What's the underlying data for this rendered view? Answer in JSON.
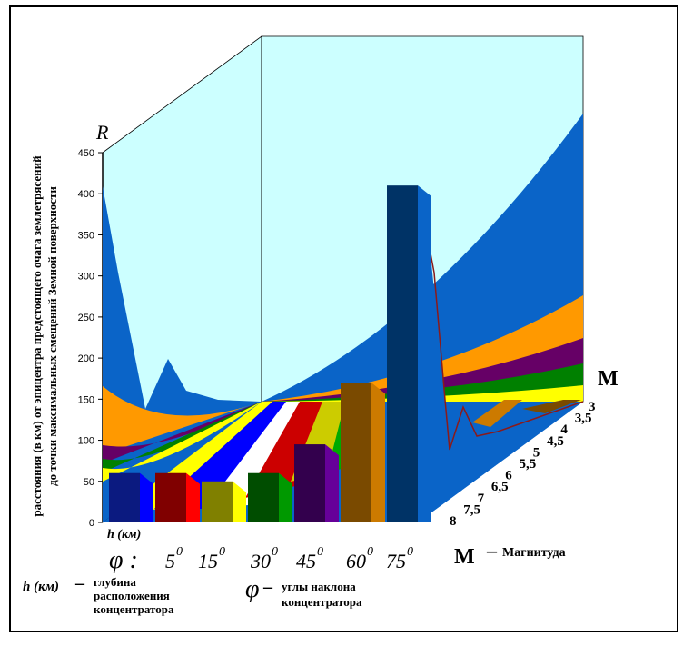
{
  "chart_data": {
    "type": "area",
    "y_axis_letter": "R",
    "ylabel_line1": "расстояния (в км) от эпицентра предстоящего очага землетрясений",
    "ylabel_line2": "до точки максимальных смещений Земной поверхности",
    "ylim": [
      0,
      450
    ],
    "yticks": [
      "0",
      "50",
      "100",
      "150",
      "200",
      "250",
      "300",
      "350",
      "400",
      "450"
    ],
    "h_label": "h (км)",
    "phi_symbol": "φ :",
    "phi_categories": [
      "5",
      "15",
      "30",
      "45",
      "60",
      "75"
    ],
    "degree_mark": "0",
    "h_bars": [
      {
        "phi": "5",
        "value": 60,
        "color": "#0b1a80"
      },
      {
        "phi": "15",
        "value": 60,
        "color": "#800000"
      },
      {
        "phi": "30",
        "value": 50,
        "color": "#808000"
      },
      {
        "phi": "45",
        "value": 60,
        "color": "#004d00"
      },
      {
        "phi": "60",
        "value": 95,
        "color": "#33004d"
      },
      {
        "phi": "75",
        "value": 170,
        "color": "#7a4a00"
      },
      {
        "phi": "",
        "value": 410,
        "color": "#003366"
      }
    ],
    "magnitude_axis_letter": "M",
    "magnitudes": [
      "3",
      "3,5",
      "4",
      "4,5",
      "5",
      "5,5",
      "6",
      "6,5",
      "7",
      "7,5",
      "8"
    ],
    "surface_band_colors": [
      "#ffff00",
      "#008000",
      "#660066",
      "#ff9900",
      "#0066cc"
    ],
    "background_wall_color": "#ccffff"
  },
  "legend": {
    "magnitude": {
      "symbol": "M",
      "dash": "–",
      "text": "Магнитуда"
    },
    "depth": {
      "symbol": "h (км)",
      "dash": "–",
      "lines": [
        "глубина",
        "расположения",
        "концентратора"
      ]
    },
    "angle": {
      "symbol": "φ",
      "dash": "–",
      "lines": [
        "углы наклона",
        "концентратора"
      ]
    }
  }
}
